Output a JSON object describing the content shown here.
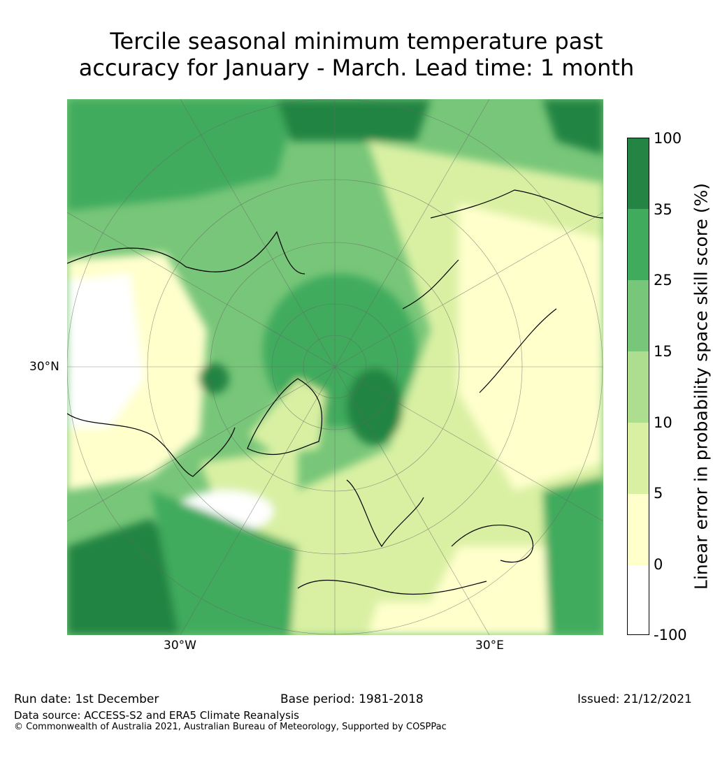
{
  "title": {
    "line1": "Tercile seasonal minimum temperature past",
    "line2": "accuracy for January - March. Lead time: 1 month"
  },
  "map": {
    "lat_label": "30°N",
    "lon_labels": [
      "30°W",
      "30°E"
    ]
  },
  "colorbar": {
    "label": "Linear error in probability space skill score (%)",
    "ticks": [
      "100",
      "35",
      "25",
      "15",
      "10",
      "5",
      "0",
      "-100"
    ],
    "colors": [
      "#238443",
      "#41ab5d",
      "#78c679",
      "#addd8e",
      "#d9f0a3",
      "#ffffcc",
      "#ffffff"
    ]
  },
  "footer": {
    "run_date": "Run date: 1st December",
    "base_period": "Base period: 1981-2018",
    "issued": "Issued: 21/12/2021",
    "data_source": "Data source: ACCESS-S2 and ERA5 Climate Reanalysis",
    "copyright": "© Commonwealth of Australia 2021, Australian Bureau of Meteorology, Supported by COSPPac"
  }
}
